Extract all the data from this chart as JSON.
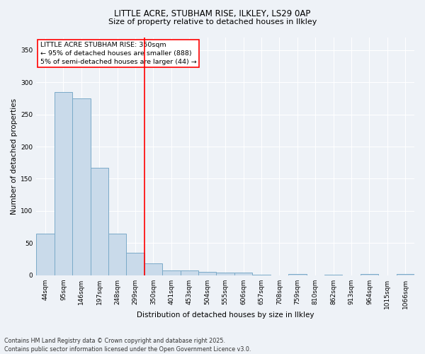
{
  "title_line1": "LITTLE ACRE, STUBHAM RISE, ILKLEY, LS29 0AP",
  "title_line2": "Size of property relative to detached houses in Ilkley",
  "xlabel": "Distribution of detached houses by size in Ilkley",
  "ylabel": "Number of detached properties",
  "footer_line1": "Contains HM Land Registry data © Crown copyright and database right 2025.",
  "footer_line2": "Contains public sector information licensed under the Open Government Licence v3.0.",
  "annotation_line1": "LITTLE ACRE STUBHAM RISE: 350sqm",
  "annotation_line2": "← 95% of detached houses are smaller (888)",
  "annotation_line3": "5% of semi-detached houses are larger (44) →",
  "bar_color": "#c9daea",
  "bar_edge_color": "#7aaac8",
  "vline_color": "red",
  "categories": [
    "44sqm",
    "95sqm",
    "146sqm",
    "197sqm",
    "248sqm",
    "299sqm",
    "350sqm",
    "401sqm",
    "453sqm",
    "504sqm",
    "555sqm",
    "606sqm",
    "657sqm",
    "708sqm",
    "759sqm",
    "810sqm",
    "862sqm",
    "913sqm",
    "964sqm",
    "1015sqm",
    "1066sqm"
  ],
  "values": [
    65,
    285,
    275,
    167,
    65,
    35,
    18,
    8,
    8,
    5,
    4,
    4,
    1,
    0,
    2,
    0,
    1,
    0,
    2,
    0,
    2
  ],
  "ylim": [
    0,
    370
  ],
  "yticks": [
    0,
    50,
    100,
    150,
    200,
    250,
    300,
    350
  ],
  "background_color": "#eef2f7",
  "grid_color": "#ffffff",
  "annotation_box_color": "#ffffff",
  "annotation_box_edge": "red",
  "title1_fontsize": 8.5,
  "title2_fontsize": 8.0,
  "tick_fontsize": 6.5,
  "label_fontsize": 7.5,
  "annotation_fontsize": 6.8,
  "footer_fontsize": 5.8
}
